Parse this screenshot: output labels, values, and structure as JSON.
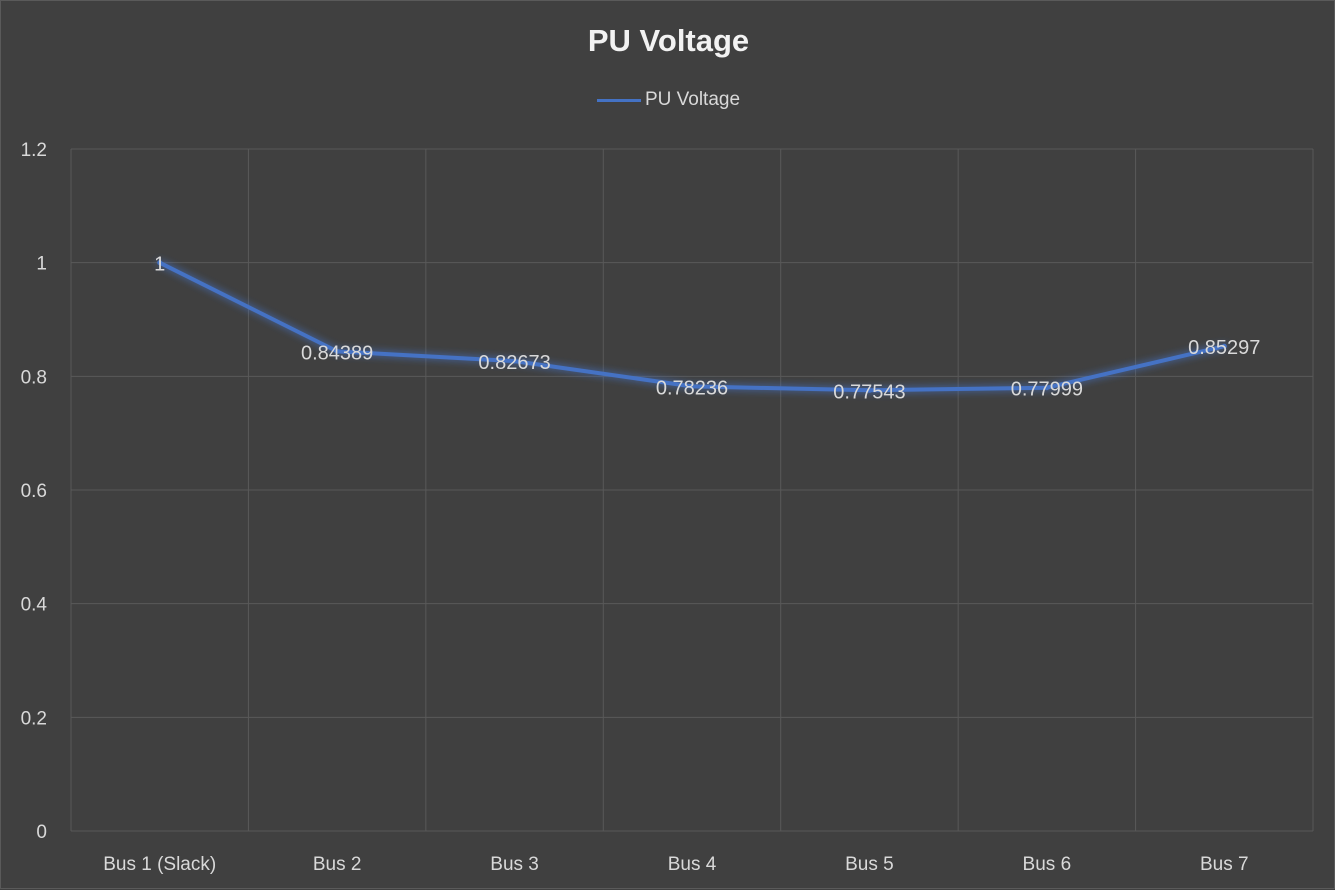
{
  "chart_data": {
    "type": "line",
    "title": "PU Voltage",
    "xlabel": "",
    "ylabel": "",
    "categories": [
      "Bus 1 (Slack)",
      "Bus 2",
      "Bus 3",
      "Bus 4",
      "Bus 5",
      "Bus 6",
      "Bus 7"
    ],
    "series": [
      {
        "name": "PU Voltage",
        "values": [
          1,
          0.84389,
          0.82673,
          0.78236,
          0.77543,
          0.77999,
          0.85297
        ],
        "labels": [
          "1",
          "0.84389",
          "0.82673",
          "0.78236",
          "0.77543",
          "0.77999",
          "0.85297"
        ],
        "color": "#4472c4"
      }
    ],
    "ylim": [
      0,
      1.2
    ],
    "yticks": [
      0,
      0.2,
      0.4,
      0.6,
      0.8,
      1,
      1.2
    ],
    "ytick_labels": [
      "0",
      "0.2",
      "0.4",
      "0.6",
      "0.8",
      "1",
      "1.2"
    ],
    "grid": true,
    "legend_position": "top",
    "colors": {
      "background": "#404040",
      "gridline": "#595959",
      "text": "#d9d9d9",
      "title": "#f2f2f2"
    }
  }
}
